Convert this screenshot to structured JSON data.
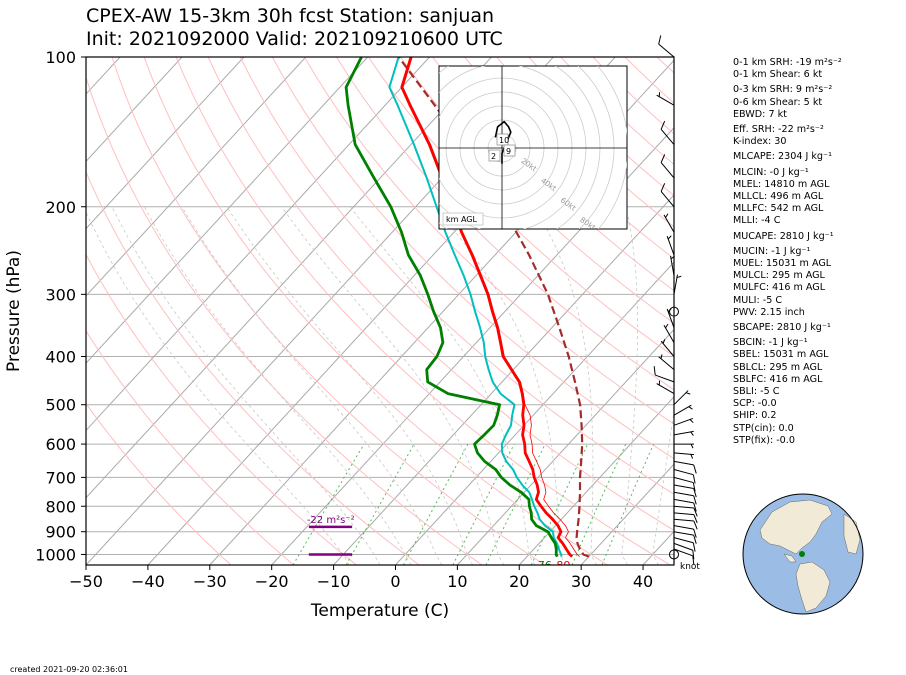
{
  "title_line1": "CPEX-AW 15-3km  30h fcst  Station: sanjuan",
  "title_line2": "Init: 2021092000  Valid: 202109210600 UTC",
  "created": "created 2021-09-20 02:36:01",
  "params": [
    {
      "label": "0-1 km SRH: -19 m²s⁻²",
      "gap": false
    },
    {
      "label": "0-1 km Shear: 6 kt",
      "gap": false
    },
    {
      "label": "0-3 km SRH: 9 m²s⁻²",
      "gap": true
    },
    {
      "label": "0-6 km Shear: 5 kt",
      "gap": false
    },
    {
      "label": "EBWD: 7 kt",
      "gap": false
    },
    {
      "label": "Eff. SRH: -22 m²s⁻²",
      "gap": true
    },
    {
      "label": "K-index: 30",
      "gap": false
    },
    {
      "label": "MLCAPE: 2304 J kg⁻¹",
      "gap": true
    },
    {
      "label": "MLCIN: -0 J kg⁻¹",
      "gap": true
    },
    {
      "label": "MLEL: 14810 m AGL",
      "gap": false
    },
    {
      "label": "MLLCL: 496 m AGL",
      "gap": false
    },
    {
      "label": "MLLFC: 542 m AGL",
      "gap": false
    },
    {
      "label": "MLLI: -4 C",
      "gap": false
    },
    {
      "label": "MUCAPE: 2810 J kg⁻¹",
      "gap": true
    },
    {
      "label": "MUCIN: -1 J kg⁻¹",
      "gap": true
    },
    {
      "label": "MUEL: 15031 m AGL",
      "gap": false
    },
    {
      "label": "MULCL: 295 m AGL",
      "gap": false
    },
    {
      "label": "MULFC: 416 m AGL",
      "gap": false
    },
    {
      "label": "MULI: -5 C",
      "gap": false
    },
    {
      "label": "PWV: 2.15 inch",
      "gap": false
    },
    {
      "label": "SBCAPE: 2810 J kg⁻¹",
      "gap": true
    },
    {
      "label": "SBCIN: -1 J kg⁻¹",
      "gap": true
    },
    {
      "label": "SBEL: 15031 m AGL",
      "gap": false
    },
    {
      "label": "SBLCL: 295 m AGL",
      "gap": false
    },
    {
      "label": "SBLFC: 416 m AGL",
      "gap": false
    },
    {
      "label": "SBLI: -5 C",
      "gap": false
    },
    {
      "label": "SCP: -0.0",
      "gap": false
    },
    {
      "label": "SHIP: 0.2",
      "gap": false
    },
    {
      "label": "STP(cin): 0.0",
      "gap": false
    },
    {
      "label": "STP(fix): -0.0",
      "gap": false
    }
  ],
  "chart_data": {
    "type": "skew-t",
    "xlabel": "Temperature (C)",
    "ylabel": "Pressure (hPa)",
    "xlim": [
      -50,
      45
    ],
    "ylim": [
      1050,
      100
    ],
    "x_ticks": [
      -50,
      -40,
      -30,
      -20,
      -10,
      0,
      10,
      20,
      30,
      40
    ],
    "y_ticks": [
      100,
      200,
      300,
      400,
      500,
      600,
      700,
      800,
      900,
      1000
    ],
    "grid": true,
    "colors": {
      "temperature": "#ff0000",
      "dewpoint": "#008000",
      "wetbulb": "#00bfbf",
      "parcel": "#a52a2a",
      "srh": "#800080",
      "dry_adiabat": "#ffbfbf",
      "mixing_ratio": "#5cb85c",
      "isotherm": "#aaaaaa"
    },
    "temperature": [
      {
        "p": 1010,
        "t": 27.3
      },
      {
        "p": 1000,
        "t": 26.6
      },
      {
        "p": 975,
        "t": 25.2
      },
      {
        "p": 950,
        "t": 23.8
      },
      {
        "p": 925,
        "t": 22.2
      },
      {
        "p": 900,
        "t": 21.8
      },
      {
        "p": 875,
        "t": 20.4
      },
      {
        "p": 850,
        "t": 18.6
      },
      {
        "p": 825,
        "t": 16.6
      },
      {
        "p": 800,
        "t": 14.8
      },
      {
        "p": 775,
        "t": 13.0
      },
      {
        "p": 750,
        "t": 12.3
      },
      {
        "p": 725,
        "t": 11.0
      },
      {
        "p": 700,
        "t": 9.4
      },
      {
        "p": 675,
        "t": 8.0
      },
      {
        "p": 650,
        "t": 6.2
      },
      {
        "p": 625,
        "t": 4.3
      },
      {
        "p": 600,
        "t": 2.9
      },
      {
        "p": 575,
        "t": 1.2
      },
      {
        "p": 550,
        "t": 0.0
      },
      {
        "p": 525,
        "t": -1.7
      },
      {
        "p": 500,
        "t": -3.1
      },
      {
        "p": 475,
        "t": -5.0
      },
      {
        "p": 450,
        "t": -7.2
      },
      {
        "p": 425,
        "t": -10.3
      },
      {
        "p": 400,
        "t": -13.6
      },
      {
        "p": 375,
        "t": -16.1
      },
      {
        "p": 350,
        "t": -18.8
      },
      {
        "p": 325,
        "t": -22.0
      },
      {
        "p": 300,
        "t": -25.3
      },
      {
        "p": 275,
        "t": -29.3
      },
      {
        "p": 250,
        "t": -33.7
      },
      {
        "p": 225,
        "t": -38.8
      },
      {
        "p": 200,
        "t": -44.0
      },
      {
        "p": 175,
        "t": -50.0
      },
      {
        "p": 150,
        "t": -57.0
      },
      {
        "p": 125,
        "t": -66.0
      },
      {
        "p": 115,
        "t": -70.0
      },
      {
        "p": 100,
        "t": -73.0
      }
    ],
    "dewpoint": [
      {
        "p": 1010,
        "t": 24.9
      },
      {
        "p": 1000,
        "t": 24.4
      },
      {
        "p": 975,
        "t": 23.6
      },
      {
        "p": 950,
        "t": 22.6
      },
      {
        "p": 925,
        "t": 21.1
      },
      {
        "p": 900,
        "t": 19.7
      },
      {
        "p": 875,
        "t": 16.9
      },
      {
        "p": 850,
        "t": 15.2
      },
      {
        "p": 825,
        "t": 14.2
      },
      {
        "p": 800,
        "t": 12.9
      },
      {
        "p": 775,
        "t": 11.8
      },
      {
        "p": 750,
        "t": 9.5
      },
      {
        "p": 725,
        "t": 6.6
      },
      {
        "p": 700,
        "t": 4.1
      },
      {
        "p": 675,
        "t": 2.0
      },
      {
        "p": 650,
        "t": -1.0
      },
      {
        "p": 625,
        "t": -3.4
      },
      {
        "p": 600,
        "t": -5.2
      },
      {
        "p": 575,
        "t": -5.0
      },
      {
        "p": 550,
        "t": -4.9
      },
      {
        "p": 525,
        "t": -5.8
      },
      {
        "p": 500,
        "t": -7.0
      },
      {
        "p": 475,
        "t": -17.0
      },
      {
        "p": 450,
        "t": -22.0
      },
      {
        "p": 425,
        "t": -24.0
      },
      {
        "p": 400,
        "t": -24.3
      },
      {
        "p": 375,
        "t": -25.4
      },
      {
        "p": 350,
        "t": -28.0
      },
      {
        "p": 325,
        "t": -31.5
      },
      {
        "p": 300,
        "t": -35.0
      },
      {
        "p": 275,
        "t": -39.0
      },
      {
        "p": 250,
        "t": -44.0
      },
      {
        "p": 225,
        "t": -48.5
      },
      {
        "p": 200,
        "t": -54.0
      },
      {
        "p": 175,
        "t": -61.0
      },
      {
        "p": 150,
        "t": -69.0
      },
      {
        "p": 125,
        "t": -76.0
      },
      {
        "p": 115,
        "t": -79.0
      },
      {
        "p": 100,
        "t": -81.0
      }
    ],
    "wetbulb": [
      {
        "p": 1010,
        "t": 25.6
      },
      {
        "p": 1000,
        "t": 25.2
      },
      {
        "p": 975,
        "t": 24.0
      },
      {
        "p": 950,
        "t": 22.9
      },
      {
        "p": 925,
        "t": 21.5
      },
      {
        "p": 900,
        "t": 20.5
      },
      {
        "p": 875,
        "t": 18.3
      },
      {
        "p": 850,
        "t": 16.5
      },
      {
        "p": 825,
        "t": 15.2
      },
      {
        "p": 800,
        "t": 13.7
      },
      {
        "p": 775,
        "t": 12.3
      },
      {
        "p": 750,
        "t": 10.8
      },
      {
        "p": 725,
        "t": 8.6
      },
      {
        "p": 700,
        "t": 6.6
      },
      {
        "p": 675,
        "t": 4.8
      },
      {
        "p": 650,
        "t": 2.5
      },
      {
        "p": 625,
        "t": 0.6
      },
      {
        "p": 600,
        "t": -0.8
      },
      {
        "p": 575,
        "t": -1.5
      },
      {
        "p": 550,
        "t": -2.1
      },
      {
        "p": 525,
        "t": -3.4
      },
      {
        "p": 500,
        "t": -4.6
      },
      {
        "p": 475,
        "t": -8.5
      },
      {
        "p": 450,
        "t": -11.5
      },
      {
        "p": 425,
        "t": -14.0
      },
      {
        "p": 400,
        "t": -16.5
      },
      {
        "p": 375,
        "t": -18.8
      },
      {
        "p": 350,
        "t": -21.6
      },
      {
        "p": 325,
        "t": -24.8
      },
      {
        "p": 300,
        "t": -28.1
      },
      {
        "p": 275,
        "t": -32.0
      },
      {
        "p": 250,
        "t": -36.5
      },
      {
        "p": 225,
        "t": -41.4
      },
      {
        "p": 200,
        "t": -46.6
      },
      {
        "p": 175,
        "t": -52.5
      },
      {
        "p": 150,
        "t": -59.5
      },
      {
        "p": 125,
        "t": -68.0
      },
      {
        "p": 115,
        "t": -72.0
      },
      {
        "p": 100,
        "t": -75.0
      }
    ],
    "parcel": [
      {
        "p": 1010,
        "t": 30.0
      },
      {
        "p": 1000,
        "t": 28.8
      },
      {
        "p": 975,
        "t": 27.4
      },
      {
        "p": 950,
        "t": 26.2
      },
      {
        "p": 925,
        "t": 25.2
      },
      {
        "p": 900,
        "t": 24.4
      },
      {
        "p": 850,
        "t": 22.8
      },
      {
        "p": 800,
        "t": 21.0
      },
      {
        "p": 750,
        "t": 19.0
      },
      {
        "p": 700,
        "t": 16.8
      },
      {
        "p": 650,
        "t": 14.6
      },
      {
        "p": 600,
        "t": 12.2
      },
      {
        "p": 550,
        "t": 9.3
      },
      {
        "p": 500,
        "t": 6.0
      },
      {
        "p": 450,
        "t": 1.8
      },
      {
        "p": 400,
        "t": -3.0
      },
      {
        "p": 350,
        "t": -8.8
      },
      {
        "p": 300,
        "t": -15.6
      },
      {
        "p": 250,
        "t": -24.5
      },
      {
        "p": 200,
        "t": -36.0
      },
      {
        "p": 175,
        "t": -43.0
      },
      {
        "p": 150,
        "t": -51.5
      },
      {
        "p": 125,
        "t": -62.0
      },
      {
        "p": 100,
        "t": -75.0
      }
    ],
    "surface_labels": [
      {
        "text": "76",
        "color": "#008000",
        "p": 1015,
        "t": 23.0
      },
      {
        "text": "80",
        "color": "#ff0000",
        "p": 1015,
        "t": 26.0
      }
    ],
    "srh": {
      "label": "-22 m²s⁻²",
      "bars": [
        {
          "p": 880,
          "t0": -14.0,
          "t1": -7.0
        },
        {
          "p": 1000,
          "t0": -14.0,
          "t1": -7.0
        }
      ]
    },
    "barb_units": "knot",
    "winds": [
      {
        "p": 1000,
        "speed": 0,
        "dir": 0
      },
      {
        "p": 975,
        "speed": 10,
        "dir": 110
      },
      {
        "p": 950,
        "speed": 10,
        "dir": 110
      },
      {
        "p": 925,
        "speed": 10,
        "dir": 105
      },
      {
        "p": 900,
        "speed": 10,
        "dir": 100
      },
      {
        "p": 875,
        "speed": 10,
        "dir": 100
      },
      {
        "p": 850,
        "speed": 10,
        "dir": 95
      },
      {
        "p": 825,
        "speed": 10,
        "dir": 95
      },
      {
        "p": 800,
        "speed": 10,
        "dir": 95
      },
      {
        "p": 775,
        "speed": 10,
        "dir": 100
      },
      {
        "p": 750,
        "speed": 10,
        "dir": 100
      },
      {
        "p": 725,
        "speed": 10,
        "dir": 100
      },
      {
        "p": 700,
        "speed": 10,
        "dir": 105
      },
      {
        "p": 675,
        "speed": 10,
        "dir": 105
      },
      {
        "p": 650,
        "speed": 10,
        "dir": 100
      },
      {
        "p": 625,
        "speed": 5,
        "dir": 95
      },
      {
        "p": 600,
        "speed": 5,
        "dir": 90
      },
      {
        "p": 575,
        "speed": 5,
        "dir": 80
      },
      {
        "p": 550,
        "speed": 5,
        "dir": 70
      },
      {
        "p": 525,
        "speed": 5,
        "dir": 60
      },
      {
        "p": 500,
        "speed": 5,
        "dir": 45
      },
      {
        "p": 475,
        "speed": 5,
        "dir": 300
      },
      {
        "p": 450,
        "speed": 10,
        "dir": 290
      },
      {
        "p": 425,
        "speed": 5,
        "dir": 310
      },
      {
        "p": 400,
        "speed": 5,
        "dir": 320
      },
      {
        "p": 375,
        "speed": 5,
        "dir": 330
      },
      {
        "p": 350,
        "speed": 5,
        "dir": 340
      },
      {
        "p": 325,
        "speed": 0,
        "dir": 0
      },
      {
        "p": 300,
        "speed": 5,
        "dir": 10
      },
      {
        "p": 275,
        "speed": 5,
        "dir": 350
      },
      {
        "p": 250,
        "speed": 5,
        "dir": 340
      },
      {
        "p": 225,
        "speed": 5,
        "dir": 330
      },
      {
        "p": 200,
        "speed": 10,
        "dir": 320
      },
      {
        "p": 175,
        "speed": 10,
        "dir": 320
      },
      {
        "p": 150,
        "speed": 10,
        "dir": 320
      },
      {
        "p": 125,
        "speed": 5,
        "dir": 300
      },
      {
        "p": 100,
        "speed": 10,
        "dir": 310
      }
    ],
    "hodograph": {
      "ring_labels": [
        "20kt",
        "40kt",
        "60kt",
        "80kt"
      ],
      "height_labels": [
        "10",
        "9",
        "2"
      ],
      "corner_label": "km AGL",
      "trace": [
        [
          -3.0,
          2.0
        ],
        [
          -2.0,
          4.0
        ],
        [
          1.0,
          5.0
        ],
        [
          3.0,
          4.0
        ],
        [
          4.0,
          3.0
        ],
        [
          3.0,
          2.0
        ],
        [
          2.0,
          1.0
        ],
        [
          0.0,
          -1.0
        ],
        [
          0.0,
          -3.0
        ]
      ]
    },
    "locator": {
      "station_lat": 18.4,
      "station_lon": -66.0,
      "ocean_color": "#9bbce4",
      "land_color": "#f0ead6",
      "station_color": "#008000"
    }
  }
}
